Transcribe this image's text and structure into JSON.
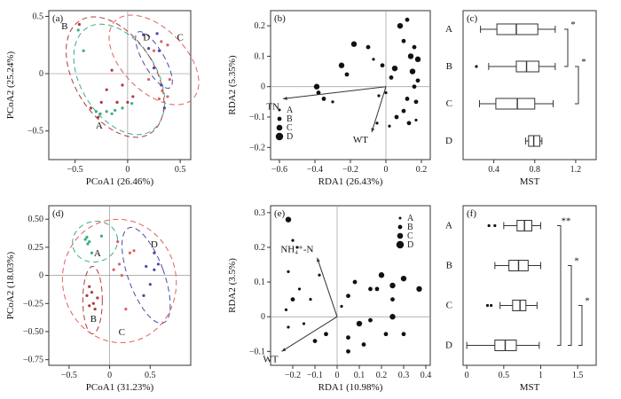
{
  "chart_data": [
    {
      "panel": "(a)",
      "type": "scatter",
      "xlabel": "PCoA1 (26.46%)",
      "ylabel": "PCoA2 (25.24%)",
      "xlim": [
        -0.75,
        0.6
      ],
      "ylim": [
        -0.75,
        0.55
      ],
      "xticks": [
        -0.5,
        0,
        0.5
      ],
      "yticks": [
        -0.5,
        0,
        0.5
      ],
      "ytick_labels": [
        "−0.5",
        "0",
        "0.5"
      ],
      "xtick_labels": [
        "−0.5",
        "0",
        "0.5"
      ],
      "groups": [
        {
          "name": "A",
          "color": "#3aaa8c",
          "label_at": [
            -0.27,
            -0.45
          ]
        },
        {
          "name": "B",
          "color": "#b03a3a",
          "label_at": [
            -0.6,
            0.42
          ]
        },
        {
          "name": "C",
          "color": "#e06060",
          "label_at": [
            0.5,
            0.32
          ]
        },
        {
          "name": "D",
          "color": "#4a4aa8",
          "label_at": [
            0.18,
            0.32
          ]
        }
      ],
      "points": {
        "A": [
          [
            -0.47,
            0.38
          ],
          [
            -0.42,
            0.2
          ],
          [
            -0.3,
            -0.33
          ],
          [
            -0.26,
            -0.35
          ],
          [
            -0.2,
            -0.33
          ],
          [
            -0.15,
            -0.35
          ],
          [
            -0.12,
            -0.32
          ],
          [
            -0.05,
            -0.3
          ],
          [
            0.04,
            -0.26
          ],
          [
            -0.1,
            -0.25
          ]
        ],
        "B": [
          [
            -0.46,
            0.43
          ],
          [
            -0.35,
            -0.3
          ],
          [
            -0.28,
            -0.38
          ],
          [
            -0.2,
            -0.14
          ],
          [
            -0.15,
            0.03
          ],
          [
            -0.1,
            -0.25
          ],
          [
            0.0,
            -0.25
          ],
          [
            0.05,
            -0.2
          ],
          [
            -0.05,
            -0.1
          ],
          [
            -0.25,
            -0.25
          ]
        ],
        "C": [
          [
            0.32,
            0.28
          ],
          [
            0.38,
            0.25
          ],
          [
            0.25,
            0.2
          ],
          [
            0.4,
            -0.05
          ],
          [
            0.33,
            -0.15
          ],
          [
            0.3,
            -0.22
          ],
          [
            0.2,
            -0.05
          ],
          [
            0.38,
            -0.2
          ]
        ],
        "D": [
          [
            0.15,
            0.34
          ],
          [
            0.28,
            0.35
          ],
          [
            0.2,
            0.22
          ],
          [
            0.25,
            0.05
          ],
          [
            0.32,
            -0.1
          ],
          [
            0.3,
            0.2
          ],
          [
            0.35,
            -0.3
          ]
        ]
      },
      "ellipses": {
        "A": {
          "cx": -0.08,
          "cy": -0.05,
          "rx": 0.36,
          "ry": 0.53,
          "rot": -32
        },
        "B": {
          "cx": -0.12,
          "cy": -0.03,
          "rx": 0.38,
          "ry": 0.58,
          "rot": -32
        },
        "C": {
          "cx": 0.25,
          "cy": 0.12,
          "rx": 0.3,
          "ry": 0.48,
          "rot": -45
        },
        "D": {
          "cx": 0.25,
          "cy": 0.12,
          "rx": 0.1,
          "ry": 0.28,
          "rot": -30
        }
      }
    },
    {
      "panel": "(b)",
      "type": "scatter",
      "xlabel": "RDA1 (26.43%)",
      "ylabel": "RDA2 (5.35%)",
      "xlim": [
        -0.65,
        0.25
      ],
      "ylim": [
        -0.24,
        0.25
      ],
      "xticks": [
        -0.6,
        -0.4,
        -0.2,
        0,
        0.2
      ],
      "xtick_labels": [
        "−0.6",
        "−0.4",
        "−0.2",
        "0",
        "0.2"
      ],
      "yticks": [
        -0.2,
        -0.1,
        0,
        0.1,
        0.2
      ],
      "ytick_labels": [
        "−0.2",
        "−0.1",
        "0",
        "0.1",
        "0.2"
      ],
      "arrows": [
        {
          "label": "TN",
          "x": -0.58,
          "y": -0.04
        },
        {
          "label": "WT",
          "x": -0.08,
          "y": -0.15
        }
      ],
      "legend": [
        "A",
        "B",
        "C",
        "D"
      ],
      "points": [
        [
          -0.39,
          0.0
        ],
        [
          -0.38,
          -0.02
        ],
        [
          -0.35,
          -0.04
        ],
        [
          -0.3,
          -0.05
        ],
        [
          -0.25,
          0.07
        ],
        [
          -0.22,
          0.04
        ],
        [
          -0.18,
          0.14
        ],
        [
          -0.1,
          0.13
        ],
        [
          -0.07,
          0.09
        ],
        [
          -0.02,
          0.07
        ],
        [
          0.0,
          -0.02
        ],
        [
          0.03,
          0.03
        ],
        [
          0.05,
          0.06
        ],
        [
          0.08,
          0.2
        ],
        [
          0.1,
          0.15
        ],
        [
          0.12,
          0.22
        ],
        [
          0.14,
          0.1
        ],
        [
          0.15,
          0.05
        ],
        [
          0.16,
          0.0
        ],
        [
          0.17,
          -0.05
        ],
        [
          0.18,
          0.09
        ],
        [
          0.16,
          0.13
        ],
        [
          0.12,
          -0.04
        ],
        [
          0.1,
          -0.08
        ],
        [
          0.06,
          -0.1
        ],
        [
          -0.04,
          -0.03
        ],
        [
          -0.05,
          -0.12
        ],
        [
          0.02,
          -0.13
        ],
        [
          0.13,
          -0.12
        ],
        [
          0.18,
          0.02
        ],
        [
          0.17,
          -0.11
        ]
      ],
      "sizes": [
        4,
        3,
        3,
        2,
        4,
        3,
        4,
        3,
        2,
        3,
        2,
        3,
        4,
        4,
        3,
        3,
        4,
        4,
        3,
        3,
        4,
        3,
        3,
        3,
        3,
        2,
        2,
        2,
        3,
        3,
        2
      ]
    },
    {
      "panel": "(c)",
      "type": "boxplot",
      "xlabel": "MST",
      "xlim": [
        0.1,
        1.4
      ],
      "xticks": [
        0.4,
        0.8,
        1.2
      ],
      "categories": [
        "A",
        "B",
        "C",
        "D"
      ],
      "boxes": [
        {
          "name": "A",
          "whisker_low": 0.27,
          "q1": 0.43,
          "median": 0.62,
          "q3": 0.83,
          "whisker_high": 1.0,
          "outliers": []
        },
        {
          "name": "B",
          "whisker_low": 0.35,
          "q1": 0.62,
          "median": 0.72,
          "q3": 0.84,
          "whisker_high": 1.0,
          "outliers": [
            0.23
          ]
        },
        {
          "name": "C",
          "whisker_low": 0.26,
          "q1": 0.42,
          "median": 0.63,
          "q3": 0.8,
          "whisker_high": 0.98,
          "outliers": []
        },
        {
          "name": "D",
          "whisker_low": 0.71,
          "q1": 0.74,
          "median": 0.79,
          "q3": 0.85,
          "whisker_high": 0.87,
          "outliers": []
        }
      ],
      "annotations": [
        "*",
        "*"
      ]
    },
    {
      "panel": "(d)",
      "type": "scatter",
      "xlabel": "PCoA1 (31.23%)",
      "ylabel": "PCoA2 (18.03%)",
      "xlim": [
        -0.75,
        1.0
      ],
      "ylim": [
        -0.8,
        0.62
      ],
      "xticks": [
        -0.5,
        0,
        0.5
      ],
      "xtick_labels": [
        "−0.5",
        "0",
        "0.5"
      ],
      "yticks": [
        -0.75,
        -0.5,
        -0.25,
        0,
        0.25,
        0.5
      ],
      "ytick_labels": [
        "−0.75",
        "−0.50",
        "−0.25",
        "0",
        "0.25",
        "0.50"
      ],
      "groups": [
        {
          "name": "A",
          "color": "#3aaa8c",
          "label_at": [
            -0.15,
            0.2
          ]
        },
        {
          "name": "B",
          "color": "#b03a3a",
          "label_at": [
            -0.2,
            -0.38
          ]
        },
        {
          "name": "C",
          "color": "#e06060",
          "label_at": [
            0.15,
            -0.5
          ]
        },
        {
          "name": "D",
          "color": "#4a4aa8",
          "label_at": [
            0.55,
            0.28
          ]
        }
      ],
      "points": {
        "A": [
          [
            -0.3,
            0.32
          ],
          [
            -0.27,
            0.28
          ],
          [
            -0.25,
            0.3
          ],
          [
            -0.1,
            0.35
          ],
          [
            -0.22,
            0.2
          ],
          [
            -0.28,
            0.34
          ]
        ],
        "B": [
          [
            -0.25,
            -0.1
          ],
          [
            -0.22,
            -0.15
          ],
          [
            -0.2,
            -0.25
          ],
          [
            -0.18,
            -0.3
          ],
          [
            -0.25,
            -0.27
          ],
          [
            -0.15,
            -0.2
          ],
          [
            -0.28,
            -0.18
          ]
        ],
        "C": [
          [
            0.12,
            0.1
          ],
          [
            0.15,
            0.0
          ],
          [
            0.25,
            0.2
          ],
          [
            0.3,
            0.22
          ],
          [
            0.1,
            0.3
          ],
          [
            0.2,
            -0.3
          ],
          [
            0.05,
            0.05
          ]
        ],
        "D": [
          [
            0.45,
            0.08
          ],
          [
            0.5,
            -0.08
          ],
          [
            0.55,
            0.05
          ],
          [
            0.42,
            -0.18
          ],
          [
            0.55,
            0.2
          ],
          [
            0.6,
            0.1
          ]
        ]
      },
      "ellipses": {
        "A": {
          "cx": -0.18,
          "cy": 0.3,
          "rx": 0.28,
          "ry": 0.18,
          "rot": -15
        },
        "B": {
          "cx": -0.21,
          "cy": -0.22,
          "rx": 0.12,
          "ry": 0.3,
          "rot": 0
        },
        "C": {
          "cx": 0.12,
          "cy": -0.05,
          "rx": 0.7,
          "ry": 0.55,
          "rot": -10
        },
        "D": {
          "cx": 0.45,
          "cy": 0.0,
          "rx": 0.22,
          "ry": 0.45,
          "rot": -20
        }
      }
    },
    {
      "panel": "(e)",
      "type": "scatter",
      "xlabel": "RDA1 (10.98%)",
      "ylabel": "RDA2 (3.5%)",
      "xlim": [
        -0.3,
        0.42
      ],
      "ylim": [
        -0.14,
        0.32
      ],
      "xticks": [
        -0.2,
        -0.1,
        0,
        0.1,
        0.2,
        0.3,
        0.4
      ],
      "xtick_labels": [
        "−0.2",
        "−0.1",
        "0",
        "0.1",
        "0.2",
        "0.3",
        "0.4"
      ],
      "yticks": [
        -0.1,
        0,
        0.1,
        0.2,
        0.3
      ],
      "ytick_labels": [
        "−0.1",
        "0",
        "0.1",
        "0.2",
        "0.3"
      ],
      "arrows": [
        {
          "label": "NH₄⁺-N",
          "x": -0.09,
          "y": 0.17
        },
        {
          "label": "WT",
          "x": -0.25,
          "y": -0.1
        }
      ],
      "legend": [
        "A",
        "B",
        "C",
        "D"
      ],
      "points": [
        [
          -0.22,
          0.28
        ],
        [
          -0.2,
          0.22
        ],
        [
          -0.18,
          0.2
        ],
        [
          -0.22,
          0.13
        ],
        [
          -0.17,
          0.08
        ],
        [
          -0.2,
          0.05
        ],
        [
          -0.23,
          0.02
        ],
        [
          -0.22,
          -0.03
        ],
        [
          -0.15,
          -0.02
        ],
        [
          -0.12,
          0.05
        ],
        [
          -0.08,
          0.12
        ],
        [
          -0.1,
          -0.07
        ],
        [
          -0.05,
          -0.05
        ],
        [
          0.02,
          0.03
        ],
        [
          0.05,
          0.06
        ],
        [
          0.08,
          0.1
        ],
        [
          0.1,
          -0.02
        ],
        [
          0.12,
          -0.08
        ],
        [
          0.05,
          -0.06
        ],
        [
          0.15,
          0.08
        ],
        [
          0.2,
          0.12
        ],
        [
          0.25,
          0.09
        ],
        [
          0.3,
          0.11
        ],
        [
          0.37,
          0.08
        ],
        [
          0.25,
          0.0
        ],
        [
          0.22,
          -0.05
        ],
        [
          0.3,
          -0.05
        ],
        [
          0.18,
          0.08
        ],
        [
          0.05,
          -0.1
        ],
        [
          0.15,
          -0.01
        ],
        [
          0.25,
          0.05
        ]
      ],
      "sizes": [
        4,
        2,
        2,
        2,
        2,
        3,
        2,
        2,
        2,
        2,
        2,
        3,
        3,
        2,
        3,
        3,
        4,
        3,
        3,
        3,
        4,
        4,
        4,
        4,
        4,
        3,
        3,
        3,
        3,
        3,
        3
      ]
    },
    {
      "panel": "(f)",
      "type": "boxplot",
      "xlabel": "MST",
      "xlim": [
        -0.05,
        1.75
      ],
      "xticks": [
        0,
        0.5,
        1,
        1.5
      ],
      "xtick_labels": [
        "0",
        "0.5",
        "1",
        "1.5"
      ],
      "categories": [
        "A",
        "B",
        "C",
        "D"
      ],
      "boxes": [
        {
          "name": "A",
          "whisker_low": 0.5,
          "q1": 0.68,
          "median": 0.78,
          "q3": 0.88,
          "whisker_high": 1.0,
          "outliers": [
            0.3,
            0.38
          ]
        },
        {
          "name": "B",
          "whisker_low": 0.38,
          "q1": 0.57,
          "median": 0.7,
          "q3": 0.83,
          "whisker_high": 1.0,
          "outliers": []
        },
        {
          "name": "C",
          "whisker_low": 0.45,
          "q1": 0.62,
          "median": 0.72,
          "q3": 0.8,
          "whisker_high": 0.95,
          "outliers": [
            0.28,
            0.33
          ]
        },
        {
          "name": "D",
          "whisker_low": 0.0,
          "q1": 0.38,
          "median": 0.52,
          "q3": 0.67,
          "whisker_high": 0.98,
          "outliers": []
        }
      ],
      "annotations": [
        "**",
        "*",
        "*"
      ]
    }
  ]
}
